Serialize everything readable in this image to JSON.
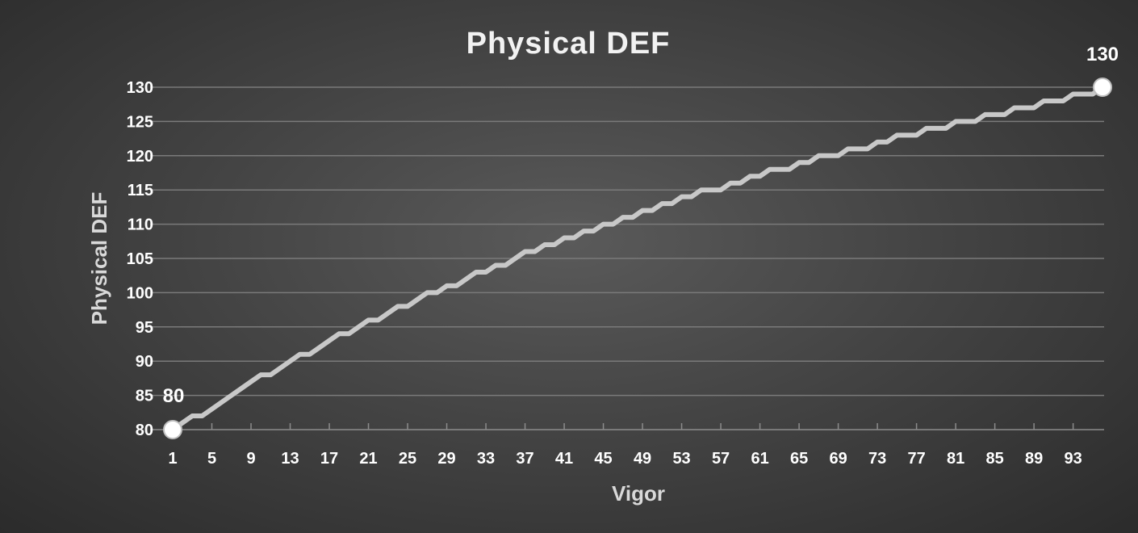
{
  "chart_data": {
    "type": "line",
    "title": "Physical DEF",
    "xlabel": "Vigor",
    "ylabel": "Physical DEF",
    "xlim": [
      1,
      96
    ],
    "ylim": [
      80,
      130
    ],
    "x_ticks": [
      1,
      5,
      9,
      13,
      17,
      21,
      25,
      29,
      33,
      37,
      41,
      45,
      49,
      53,
      57,
      61,
      65,
      69,
      73,
      77,
      81,
      85,
      89,
      93
    ],
    "y_ticks": [
      80,
      85,
      90,
      95,
      100,
      105,
      110,
      115,
      120,
      125,
      130
    ],
    "grid": true,
    "colors": {
      "line": "#c8c8c8",
      "marker": "#ffffff",
      "background": "#444444"
    },
    "series": [
      {
        "x": [
          1,
          2,
          3,
          4,
          5,
          6,
          7,
          8,
          9,
          10,
          11,
          12,
          13,
          14,
          15,
          16,
          17,
          18,
          19,
          20,
          21,
          22,
          23,
          24,
          25,
          26,
          27,
          28,
          29,
          30,
          31,
          32,
          33,
          34,
          35,
          36,
          37,
          38,
          39,
          40,
          41,
          42,
          43,
          44,
          45,
          46,
          47,
          48,
          49,
          50,
          51,
          52,
          53,
          54,
          55,
          56,
          57,
          58,
          59,
          60,
          61,
          62,
          63,
          64,
          65,
          66,
          67,
          68,
          69,
          70,
          71,
          72,
          73,
          74,
          75,
          76,
          77,
          78,
          79,
          80,
          81,
          82,
          83,
          84,
          85,
          86,
          87,
          88,
          89,
          90,
          91,
          92,
          93,
          94,
          95,
          96
        ],
        "values": [
          80,
          81,
          82,
          82,
          83,
          84,
          85,
          86,
          87,
          88,
          88,
          89,
          90,
          91,
          91,
          92,
          93,
          94,
          94,
          95,
          96,
          96,
          97,
          98,
          98,
          99,
          100,
          100,
          101,
          101,
          102,
          103,
          103,
          104,
          104,
          105,
          106,
          106,
          107,
          107,
          108,
          108,
          109,
          109,
          110,
          110,
          111,
          111,
          112,
          112,
          113,
          113,
          114,
          114,
          115,
          115,
          115,
          116,
          116,
          117,
          117,
          118,
          118,
          118,
          119,
          119,
          120,
          120,
          120,
          121,
          121,
          121,
          122,
          122,
          123,
          123,
          123,
          124,
          124,
          124,
          125,
          125,
          125,
          126,
          126,
          126,
          127,
          127,
          127,
          128,
          128,
          128,
          129,
          129,
          129,
          130
        ]
      }
    ],
    "point_labels": [
      {
        "x": 1,
        "y": 80,
        "text": "80"
      },
      {
        "x": 96,
        "y": 130,
        "text": "130"
      }
    ]
  }
}
